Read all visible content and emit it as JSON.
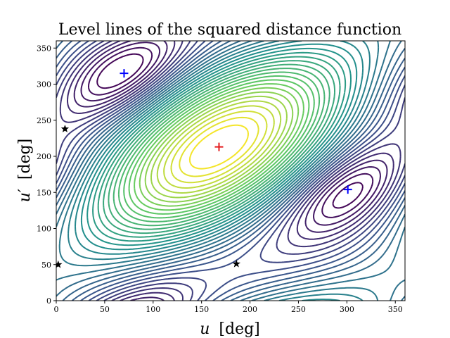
{
  "chart_data": {
    "type": "contour",
    "title": "Level lines of the squared distance function",
    "xlabel": {
      "var": "u",
      "unit": "[deg]"
    },
    "ylabel": {
      "var": "u′",
      "unit": "[deg]"
    },
    "xlim": [
      0,
      360
    ],
    "ylim": [
      0,
      360
    ],
    "xticks": [
      0,
      50,
      100,
      150,
      200,
      250,
      300,
      350
    ],
    "yticks": [
      0,
      50,
      100,
      150,
      200,
      250,
      300,
      350
    ],
    "colormap": "viridis",
    "colormap_stops": [
      "#440154",
      "#3b528b",
      "#21918c",
      "#5ec962",
      "#fde725"
    ],
    "levels": 36,
    "maximum": {
      "u": 168,
      "u_prime": 213,
      "marker": "+",
      "color": "#e41a1c"
    },
    "minima": [
      {
        "u": 70,
        "u_prime": 315,
        "marker": "+",
        "color": "#0000ff"
      },
      {
        "u": 301,
        "u_prime": 154,
        "marker": "+",
        "color": "#0000ff"
      }
    ],
    "saddles": [
      {
        "u": 9,
        "u_prime": 238,
        "marker": "star",
        "color": "#000000"
      },
      {
        "u": 2,
        "u_prime": 50,
        "marker": "star",
        "color": "#000000"
      },
      {
        "u": 186,
        "u_prime": 51,
        "marker": "star",
        "color": "#000000"
      }
    ]
  }
}
